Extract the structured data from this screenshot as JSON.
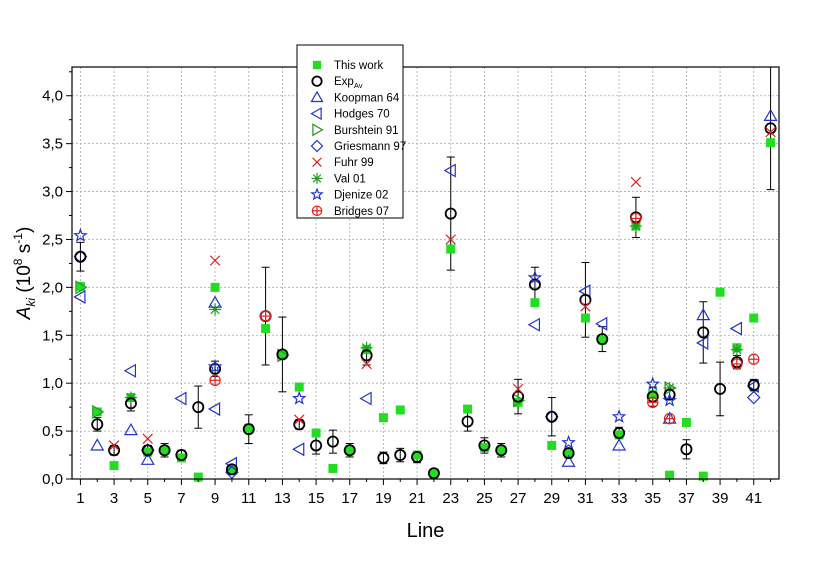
{
  "chart_data": {
    "type": "scatter",
    "title": "",
    "xlabel": "Line",
    "ylabel_main": "A",
    "ylabel_sub": "ki",
    "ylabel_rest": " (10",
    "ylabel_exp1": "8",
    "ylabel_unit": " s",
    "ylabel_exp2": "-1",
    "ylabel_close": ")",
    "xlim": [
      0.5,
      42.5
    ],
    "ylim": [
      0,
      4.3
    ],
    "x_ticks": [
      1,
      3,
      5,
      7,
      9,
      11,
      13,
      15,
      17,
      19,
      21,
      23,
      25,
      27,
      29,
      31,
      33,
      35,
      37,
      39,
      41
    ],
    "x_minor_ticks": [
      2,
      4,
      6,
      8,
      10,
      12,
      14,
      16,
      18,
      20,
      22,
      24,
      26,
      28,
      30,
      32,
      34,
      36,
      38,
      40,
      42
    ],
    "y_ticks": [
      {
        "value": 0.0,
        "label": "0,0"
      },
      {
        "value": 0.5,
        "label": "0,5"
      },
      {
        "value": 1.0,
        "label": "1,0"
      },
      {
        "value": 1.5,
        "label": "1,5"
      },
      {
        "value": 2.0,
        "label": "2,0"
      },
      {
        "value": 2.5,
        "label": "2,5"
      },
      {
        "value": 3.0,
        "label": "3,0"
      },
      {
        "value": 3.5,
        "label": "3,5"
      },
      {
        "value": 4.0,
        "label": "4,0"
      }
    ],
    "grid": true,
    "legend_position": "top-left",
    "series": [
      {
        "name": "This work",
        "name_sub": "",
        "marker": "square",
        "color": "#22dd22",
        "points": [
          [
            1,
            2.01
          ],
          [
            2,
            0.7
          ],
          [
            3,
            0.14
          ],
          [
            4,
            0.85
          ],
          [
            5,
            0.28
          ],
          [
            6,
            0.3
          ],
          [
            7,
            0.22
          ],
          [
            8,
            0.02
          ],
          [
            9,
            2.0
          ],
          [
            10,
            0.1
          ],
          [
            11,
            0.53
          ],
          [
            12,
            1.57
          ],
          [
            13,
            1.3
          ],
          [
            14,
            0.96
          ],
          [
            15,
            0.48
          ],
          [
            16,
            0.11
          ],
          [
            17,
            0.3
          ],
          [
            18,
            1.35
          ],
          [
            19,
            0.64
          ],
          [
            20,
            0.72
          ],
          [
            21,
            0.25
          ],
          [
            22,
            0.06
          ],
          [
            23,
            2.4
          ],
          [
            24,
            0.73
          ],
          [
            25,
            0.33
          ],
          [
            26,
            0.3
          ],
          [
            27,
            0.8
          ],
          [
            28,
            1.84
          ],
          [
            29,
            0.35
          ],
          [
            30,
            0.27
          ],
          [
            31,
            1.68
          ],
          [
            32,
            1.45
          ],
          [
            33,
            0.46
          ],
          [
            34,
            2.64
          ],
          [
            35,
            0.88
          ],
          [
            36,
            0.04
          ],
          [
            37,
            0.59
          ],
          [
            38,
            0.03
          ],
          [
            39,
            1.95
          ],
          [
            40,
            1.37
          ],
          [
            41,
            1.68
          ],
          [
            42,
            3.51
          ]
        ]
      },
      {
        "name": "Exp",
        "name_sub": "Av",
        "marker": "circle",
        "color": "#000000",
        "points": [
          [
            1,
            2.32
          ],
          [
            2,
            0.57
          ],
          [
            3,
            0.3
          ],
          [
            4,
            0.79
          ],
          [
            5,
            0.3
          ],
          [
            6,
            0.3
          ],
          [
            7,
            0.25
          ],
          [
            8,
            0.75
          ],
          [
            9,
            1.15
          ],
          [
            10,
            0.1
          ],
          [
            11,
            0.52
          ],
          [
            12,
            1.7
          ],
          [
            13,
            1.3
          ],
          [
            14,
            0.57
          ],
          [
            15,
            0.35
          ],
          [
            16,
            0.39
          ],
          [
            17,
            0.3
          ],
          [
            18,
            1.29
          ],
          [
            19,
            0.22
          ],
          [
            20,
            0.25
          ],
          [
            21,
            0.23
          ],
          [
            22,
            0.06
          ],
          [
            23,
            2.77
          ],
          [
            24,
            0.6
          ],
          [
            25,
            0.35
          ],
          [
            26,
            0.3
          ],
          [
            27,
            0.86
          ],
          [
            28,
            2.03
          ],
          [
            29,
            0.65
          ],
          [
            30,
            0.27
          ],
          [
            31,
            1.87
          ],
          [
            32,
            1.46
          ],
          [
            33,
            0.48
          ],
          [
            34,
            2.73
          ],
          [
            35,
            0.86
          ],
          [
            36,
            0.88
          ],
          [
            37,
            0.31
          ],
          [
            38,
            1.53
          ],
          [
            39,
            0.94
          ],
          [
            40,
            1.22
          ],
          [
            41,
            0.98
          ],
          [
            42,
            3.66
          ]
        ],
        "errors": [
          [
            1,
            0.15
          ],
          [
            2,
            0.07
          ],
          [
            3,
            0.05
          ],
          [
            4,
            0.08
          ],
          [
            5,
            0.05
          ],
          [
            6,
            0.07
          ],
          [
            7,
            0.05
          ],
          [
            8,
            0.22
          ],
          [
            9,
            0.08
          ],
          [
            10,
            0.03
          ],
          [
            11,
            0.15
          ],
          [
            12,
            0.51
          ],
          [
            13,
            0.39
          ],
          [
            14,
            0.05
          ],
          [
            15,
            0.09
          ],
          [
            16,
            0.12
          ],
          [
            17,
            0.07
          ],
          [
            18,
            0.1
          ],
          [
            19,
            0.06
          ],
          [
            20,
            0.07
          ],
          [
            21,
            0.06
          ],
          [
            22,
            0.04
          ],
          [
            23,
            0.59
          ],
          [
            24,
            0.1
          ],
          [
            25,
            0.08
          ],
          [
            26,
            0.07
          ],
          [
            27,
            0.18
          ],
          [
            28,
            0.18
          ],
          [
            29,
            0.2
          ],
          [
            30,
            0.05
          ],
          [
            31,
            0.39
          ],
          [
            32,
            0.13
          ],
          [
            33,
            0.06
          ],
          [
            34,
            0.21
          ],
          [
            35,
            0.1
          ],
          [
            36,
            0.05
          ],
          [
            37,
            0.1
          ],
          [
            38,
            0.32
          ],
          [
            39,
            0.28
          ],
          [
            40,
            0.07
          ],
          [
            41,
            0.06
          ],
          [
            42,
            0.64
          ]
        ]
      },
      {
        "name": "Koopman 64",
        "name_sub": "",
        "marker": "triangle-up",
        "color": "#2233cc",
        "points": [
          [
            2,
            0.35
          ],
          [
            4,
            0.51
          ],
          [
            5,
            0.2
          ],
          [
            9,
            1.84
          ],
          [
            30,
            0.18
          ],
          [
            33,
            0.35
          ],
          [
            36,
            0.63
          ],
          [
            38,
            1.71
          ],
          [
            42,
            3.79
          ]
        ]
      },
      {
        "name": "Hodges 70",
        "name_sub": "",
        "marker": "triangle-left",
        "color": "#2233cc",
        "points": [
          [
            1,
            1.9
          ],
          [
            4,
            1.13
          ],
          [
            7,
            0.84
          ],
          [
            9,
            0.73
          ],
          [
            10,
            0.16
          ],
          [
            14,
            0.31
          ],
          [
            18,
            0.84
          ],
          [
            23,
            3.22
          ],
          [
            28,
            1.61
          ],
          [
            31,
            1.96
          ],
          [
            32,
            1.62
          ],
          [
            38,
            1.42
          ],
          [
            40,
            1.57
          ],
          [
            41,
            0.97
          ]
        ]
      },
      {
        "name": "Burshtein 91",
        "name_sub": "",
        "marker": "triangle-right",
        "color": "#229922",
        "points": [
          [
            1,
            2.0
          ],
          [
            2,
            0.7
          ],
          [
            13,
            1.29
          ],
          [
            27,
            0.82
          ],
          [
            36,
            0.95
          ]
        ]
      },
      {
        "name": "Griesmann 97",
        "name_sub": "",
        "marker": "diamond",
        "color": "#2233cc",
        "points": [
          [
            1,
            2.32
          ],
          [
            5,
            0.3
          ],
          [
            10,
            0.07
          ],
          [
            29,
            0.65
          ],
          [
            41,
            0.85
          ]
        ]
      },
      {
        "name": "Fuhr 99",
        "name_sub": "",
        "marker": "x",
        "color": "#dd2222",
        "points": [
          [
            3,
            0.35
          ],
          [
            5,
            0.42
          ],
          [
            9,
            2.28
          ],
          [
            14,
            0.62
          ],
          [
            18,
            1.2
          ],
          [
            23,
            2.5
          ],
          [
            27,
            0.94
          ],
          [
            31,
            1.8
          ],
          [
            34,
            3.1
          ],
          [
            42,
            3.62
          ]
        ]
      },
      {
        "name": "Val 01",
        "name_sub": "",
        "marker": "asterisk",
        "color": "#229922",
        "points": [
          [
            4,
            0.85
          ],
          [
            9,
            1.77
          ],
          [
            18,
            1.37
          ],
          [
            34,
            2.64
          ],
          [
            36,
            0.95
          ],
          [
            40,
            1.35
          ]
        ]
      },
      {
        "name": "Djenize 02",
        "name_sub": "",
        "marker": "star",
        "color": "#2233cc",
        "points": [
          [
            1,
            2.54
          ],
          [
            9,
            1.17
          ],
          [
            14,
            0.84
          ],
          [
            28,
            2.1
          ],
          [
            30,
            0.38
          ],
          [
            33,
            0.65
          ],
          [
            35,
            0.99
          ],
          [
            36,
            0.82
          ]
        ]
      },
      {
        "name": "Bridges 07",
        "name_sub": "",
        "marker": "circle-plus",
        "color": "#dd2222",
        "points": [
          [
            9,
            1.03
          ],
          [
            12,
            1.7
          ],
          [
            34,
            2.72
          ],
          [
            35,
            0.8
          ],
          [
            36,
            0.63
          ],
          [
            40,
            1.2
          ],
          [
            41,
            1.25
          ]
        ]
      }
    ]
  }
}
